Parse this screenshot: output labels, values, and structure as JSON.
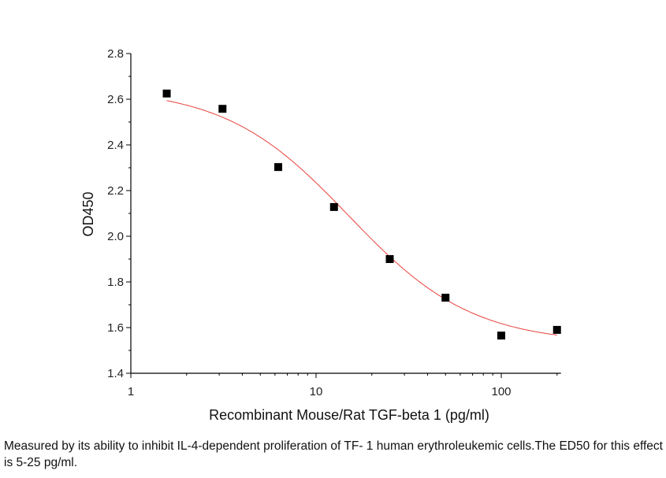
{
  "chart_data": {
    "type": "scatter",
    "xlabel": "Recombinant Mouse/Rat TGF-beta 1 (pg/ml)",
    "ylabel": "OD450",
    "x_scale": "log",
    "xlim": [
      1,
      210
    ],
    "ylim": [
      1.4,
      2.8
    ],
    "x_ticks": [
      "1",
      "10",
      "100"
    ],
    "y_ticks": [
      "1.4",
      "1.6",
      "1.8",
      "2.0",
      "2.2",
      "2.4",
      "2.6",
      "2.8"
    ],
    "grid": false,
    "points": {
      "x": [
        1.5625,
        3.125,
        6.25,
        12.5,
        25,
        50,
        100,
        200
      ],
      "y": [
        2.625,
        2.558,
        2.303,
        2.128,
        1.9,
        1.731,
        1.565,
        1.59
      ],
      "color": "#000000",
      "marker": "square"
    },
    "fit_curve": {
      "model": "4PL",
      "top": 2.65,
      "bottom": 1.53,
      "ec50": 15,
      "hill": 1.3,
      "x_range": [
        1.5625,
        200
      ],
      "color": "#e8413c"
    }
  },
  "caption": "Measured by its ability to inhibit IL-4-dependent proliferation of TF- 1 human erythroleukemic cells.The ED50 for this effect is 5-25 pg/ml."
}
